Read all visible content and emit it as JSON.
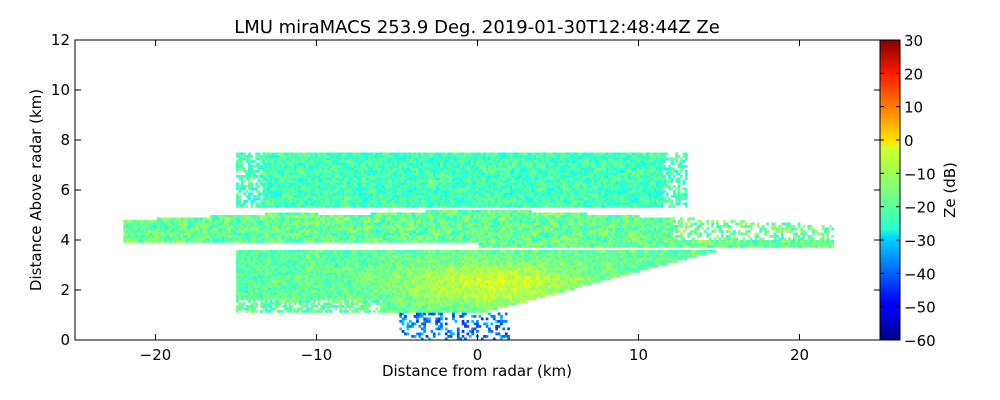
{
  "chart_data": {
    "type": "heatmap",
    "title": "LMU miraMACS 253.9 Deg. 2019-01-30T12:48:44Z  Ze",
    "xlabel": "Distance from radar (km)",
    "ylabel": "Distance Above radar  (km)",
    "xlim": [
      -25,
      25
    ],
    "ylim": [
      0,
      12
    ],
    "xticks": [
      -20,
      -10,
      0,
      10,
      20
    ],
    "xtick_labels": [
      "−20",
      "−10",
      "0",
      "10",
      "20"
    ],
    "yticks": [
      0,
      2,
      4,
      6,
      8,
      10,
      12
    ],
    "ytick_labels": [
      "0",
      "2",
      "4",
      "6",
      "8",
      "10",
      "12"
    ],
    "colorbar": {
      "label": "Ze (dB)",
      "min": -60,
      "max": 30,
      "ticks": [
        -60,
        -50,
        -40,
        -30,
        -20,
        -10,
        0,
        10,
        20,
        30
      ],
      "tick_labels": [
        "−60",
        "−50",
        "−40",
        "−30",
        "−20",
        "−10",
        "0",
        "10",
        "20",
        "30"
      ],
      "colormap": "jet"
    },
    "echo_regions": [
      {
        "name": "upper cloud deck",
        "x_range": [
          -15,
          13
        ],
        "y_range": [
          5.2,
          7.4
        ],
        "ze_mean": -20
      },
      {
        "name": "middle sloped layer",
        "x_range": [
          -22,
          22
        ],
        "y_range": [
          3.6,
          5.2
        ],
        "ze_mean": -17
      },
      {
        "name": "lower precipitating layer",
        "x_range": [
          -15,
          16
        ],
        "y_range": [
          1.0,
          3.6
        ],
        "ze_mean": -10
      },
      {
        "name": "near-radar low echoes",
        "x_range": [
          -5,
          2
        ],
        "y_range": [
          0,
          1.0
        ],
        "ze_mean": -38
      }
    ]
  }
}
